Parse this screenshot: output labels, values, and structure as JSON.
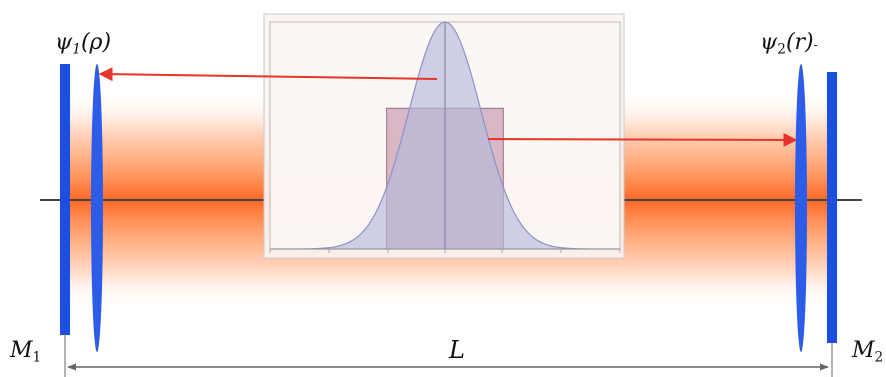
{
  "labels": {
    "psi1_symbol": "ψ",
    "psi1_sub": "1",
    "psi1_arg": "(ρ)",
    "psi2_symbol": "ψ",
    "psi2_sub": "2",
    "psi2_arg": "(r)",
    "psi2_tail": "-",
    "m1_letter": "M",
    "m1_sub": "1",
    "m2_letter": "M",
    "m2_sub": "2",
    "length": "L"
  },
  "colors": {
    "mirror": "#1a4fe0",
    "lens": "#2d5ce8",
    "beam_core": "#ff6a28",
    "arrow": "#e8332a",
    "axis": "#444444",
    "gaussian_fill": "#b6b8dc",
    "rect_fill": "#b9859e"
  },
  "inset_plot": {
    "profiles": [
      "gaussian",
      "top-hat"
    ],
    "x_range": [
      -3,
      3
    ],
    "gaussian_peak": 1.0,
    "top_hat_height": 0.62,
    "top_hat_range": [
      -1,
      1
    ]
  }
}
